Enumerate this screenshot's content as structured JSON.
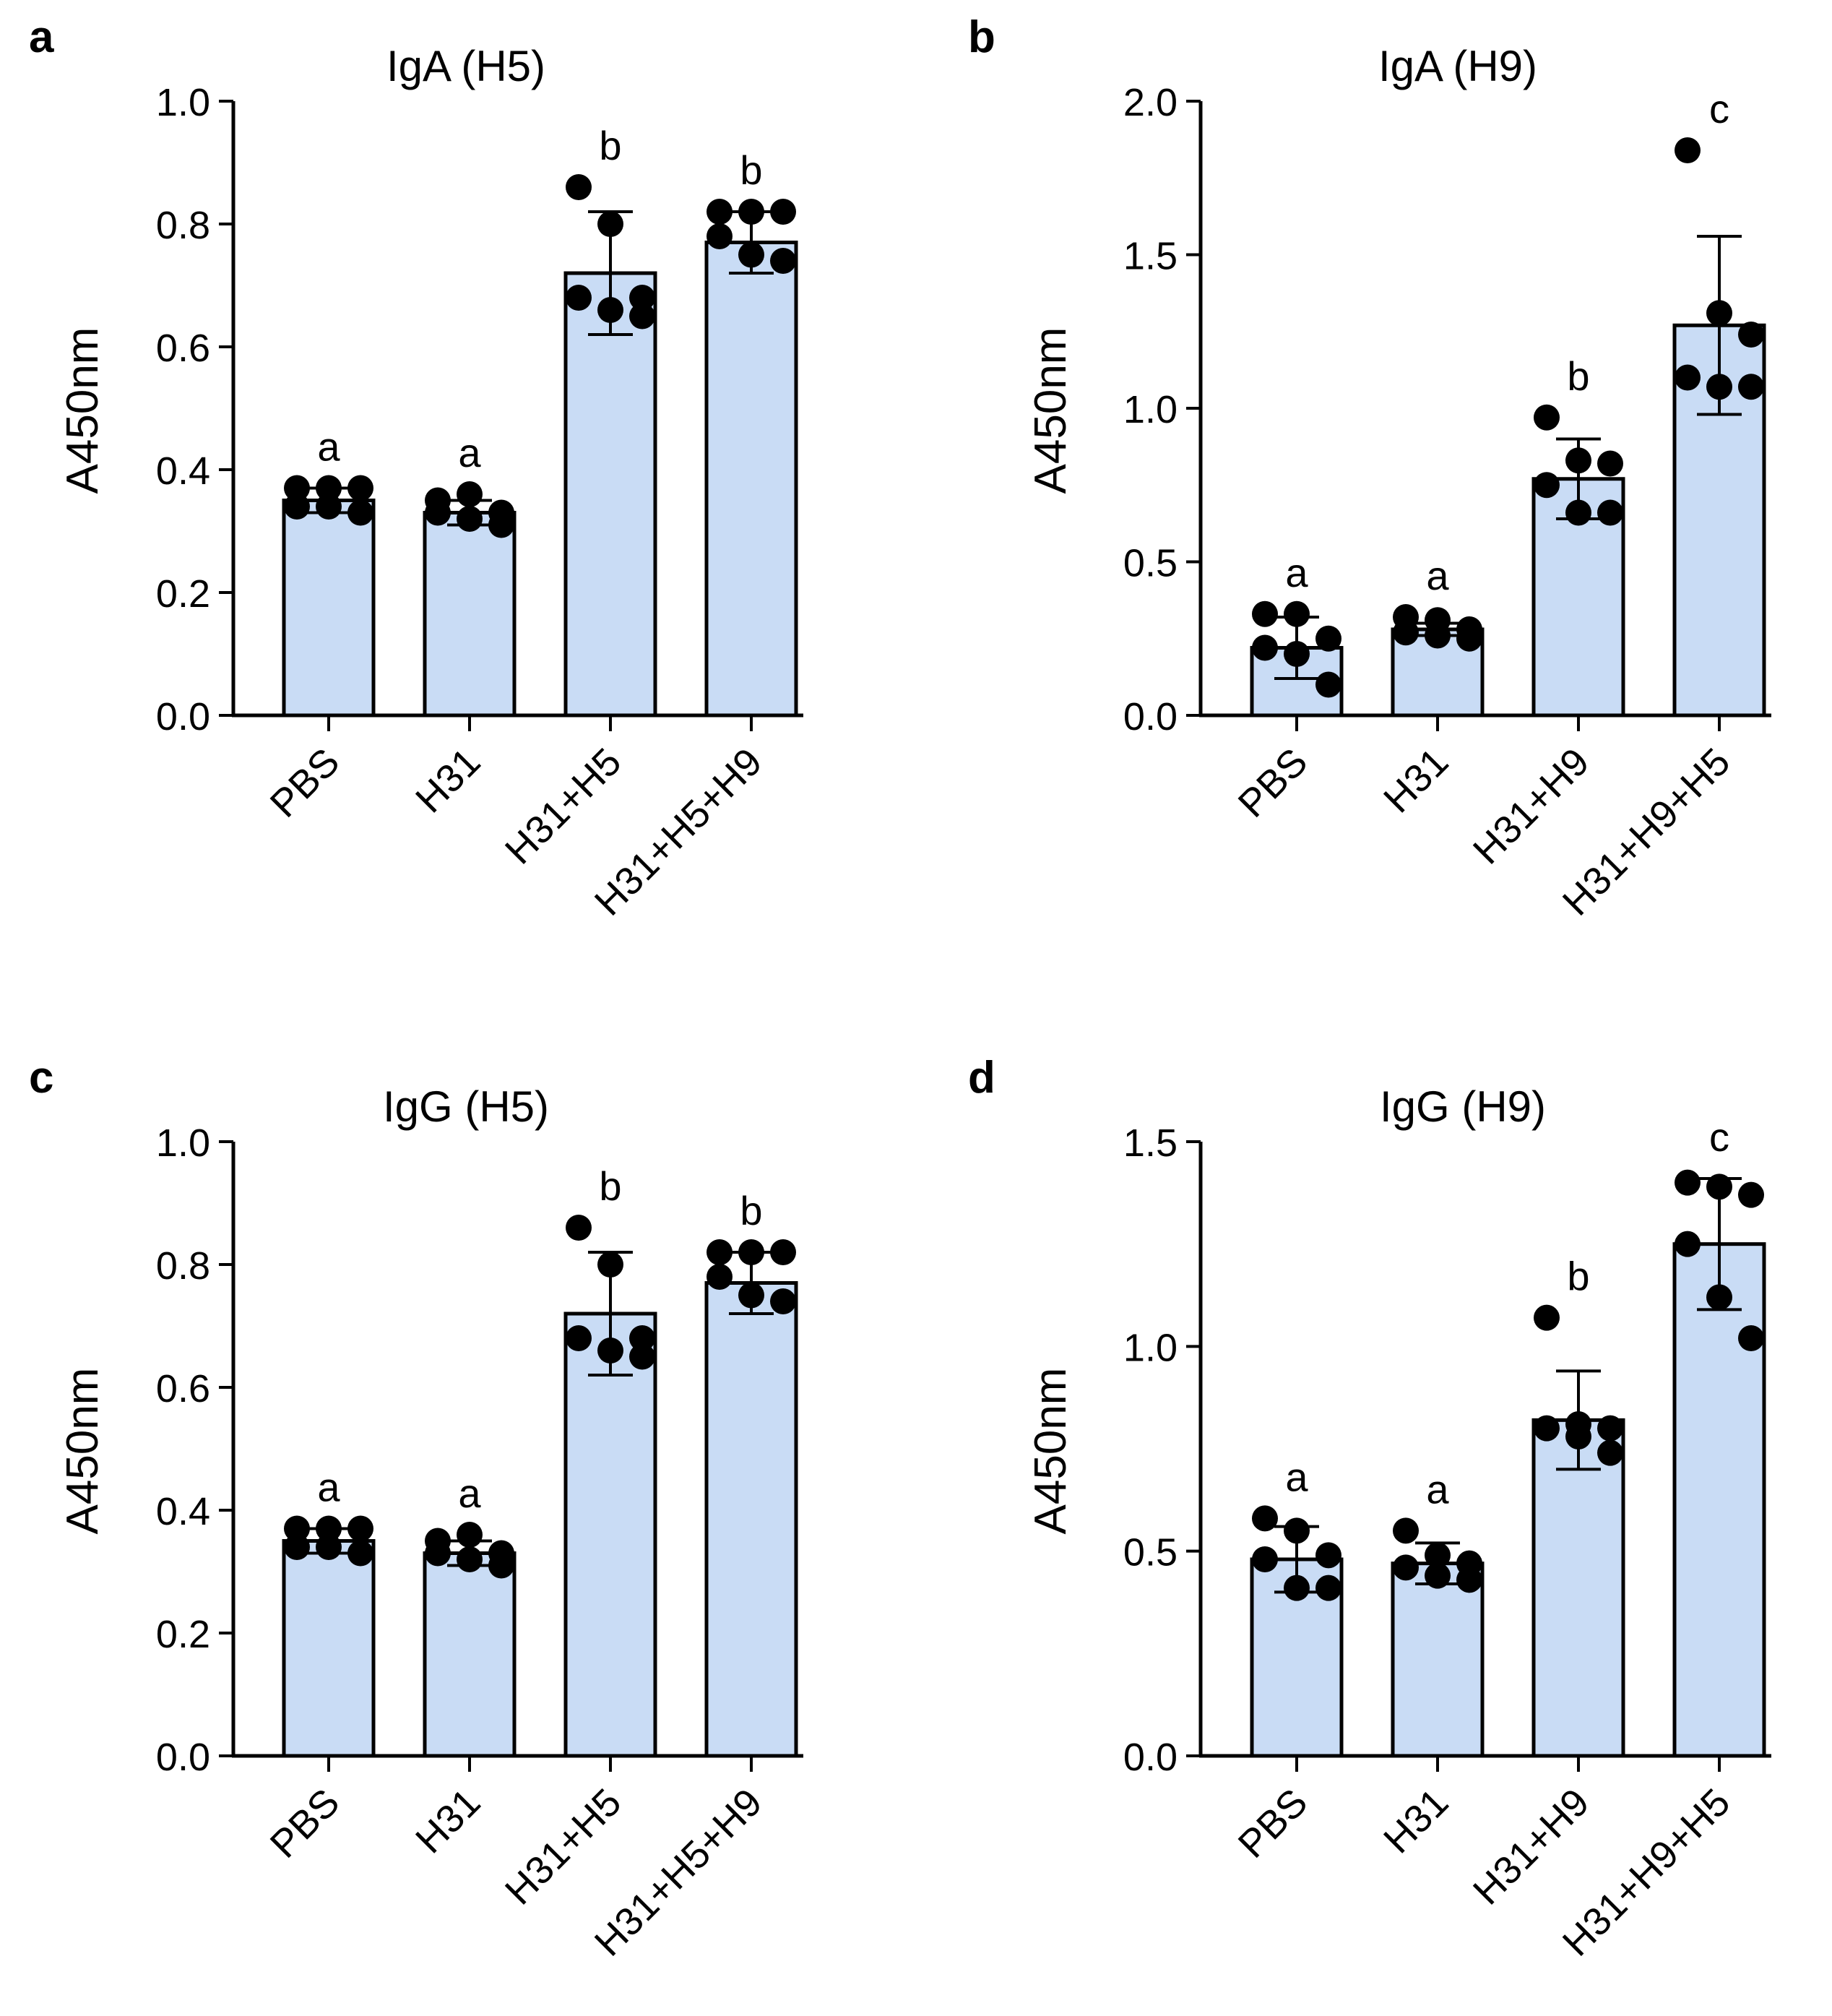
{
  "figure": {
    "colors": {
      "bar_fill": "#c9dcf5",
      "stroke": "#000000",
      "point": "#000000",
      "background": "#ffffff"
    }
  },
  "chart_data": [
    {
      "panel": "a",
      "type": "bar",
      "title": "IgA (H5)",
      "ylabel": "A450nm",
      "xlabel": "",
      "ylim": [
        0,
        1.0
      ],
      "yticks": [
        0.0,
        0.2,
        0.4,
        0.6,
        0.8,
        1.0
      ],
      "ytick_labels": [
        "0.0",
        "0.2",
        "0.4",
        "0.6",
        "0.8",
        "1.0"
      ],
      "categories": [
        "PBS",
        "H31",
        "H31+H5",
        "H31+H5+H9"
      ],
      "values": [
        0.35,
        0.33,
        0.72,
        0.77
      ],
      "sd": [
        0.02,
        0.02,
        0.1,
        0.05
      ],
      "significance": [
        "a",
        "a",
        "b",
        "b"
      ],
      "points": [
        [
          0.37,
          0.37,
          0.37,
          0.34,
          0.34,
          0.33
        ],
        [
          0.35,
          0.36,
          0.33,
          0.33,
          0.32,
          0.31
        ],
        [
          0.86,
          0.8,
          0.68,
          0.68,
          0.66,
          0.65
        ],
        [
          0.82,
          0.82,
          0.82,
          0.78,
          0.75,
          0.74
        ]
      ],
      "grid": false
    },
    {
      "panel": "b",
      "type": "bar",
      "title": "IgA (H9)",
      "ylabel": "A450nm",
      "xlabel": "",
      "ylim": [
        0,
        2.0
      ],
      "yticks": [
        0.0,
        0.5,
        1.0,
        1.5,
        2.0
      ],
      "ytick_labels": [
        "0.0",
        "0.5",
        "1.0",
        "1.5",
        "2.0"
      ],
      "categories": [
        "PBS",
        "H31",
        "H31+H9",
        "H31+H9+H5"
      ],
      "values": [
        0.22,
        0.28,
        0.77,
        1.27
      ],
      "sd": [
        0.1,
        0.02,
        0.13,
        0.29
      ],
      "significance": [
        "a",
        "a",
        "b",
        "c"
      ],
      "points": [
        [
          0.33,
          0.33,
          0.25,
          0.22,
          0.2,
          0.1
        ],
        [
          0.32,
          0.31,
          0.28,
          0.27,
          0.26,
          0.25
        ],
        [
          0.97,
          0.83,
          0.82,
          0.75,
          0.66,
          0.66
        ],
        [
          1.84,
          1.31,
          1.24,
          1.1,
          1.07,
          1.07
        ]
      ],
      "grid": false
    },
    {
      "panel": "c",
      "type": "bar",
      "title": "IgG (H5)",
      "ylabel": "A450nm",
      "xlabel": "",
      "ylim": [
        0,
        1.0
      ],
      "yticks": [
        0.0,
        0.2,
        0.4,
        0.6,
        0.8,
        1.0
      ],
      "ytick_labels": [
        "0.0",
        "0.2",
        "0.4",
        "0.6",
        "0.8",
        "1.0"
      ],
      "categories": [
        "PBS",
        "H31",
        "H31+H5",
        "H31+H5+H9"
      ],
      "values": [
        0.35,
        0.33,
        0.72,
        0.77
      ],
      "sd": [
        0.02,
        0.02,
        0.1,
        0.05
      ],
      "significance": [
        "a",
        "a",
        "b",
        "b"
      ],
      "points": [
        [
          0.37,
          0.37,
          0.37,
          0.34,
          0.34,
          0.33
        ],
        [
          0.35,
          0.36,
          0.33,
          0.33,
          0.32,
          0.31
        ],
        [
          0.86,
          0.8,
          0.68,
          0.68,
          0.66,
          0.65
        ],
        [
          0.82,
          0.82,
          0.82,
          0.78,
          0.75,
          0.74
        ]
      ],
      "grid": false
    },
    {
      "panel": "d",
      "type": "bar",
      "title": "IgG (H9)",
      "ylabel": "A450nm",
      "xlabel": "",
      "ylim": [
        0,
        1.5
      ],
      "yticks": [
        0.0,
        0.5,
        1.0,
        1.5
      ],
      "ytick_labels": [
        "0.0",
        "0.5",
        "1.0",
        "1.5"
      ],
      "categories": [
        "PBS",
        "H31",
        "H31+H9",
        "H31+H9+H5"
      ],
      "values": [
        0.48,
        0.47,
        0.82,
        1.25
      ],
      "sd": [
        0.08,
        0.05,
        0.12,
        0.16
      ],
      "significance": [
        "a",
        "a",
        "b",
        "c"
      ],
      "points": [
        [
          0.58,
          0.55,
          0.49,
          0.48,
          0.41,
          0.41
        ],
        [
          0.55,
          0.49,
          0.47,
          0.46,
          0.44,
          0.43
        ],
        [
          1.07,
          0.81,
          0.8,
          0.8,
          0.78,
          0.74
        ],
        [
          1.4,
          1.39,
          1.37,
          1.25,
          1.12,
          1.02
        ]
      ],
      "grid": false
    }
  ]
}
